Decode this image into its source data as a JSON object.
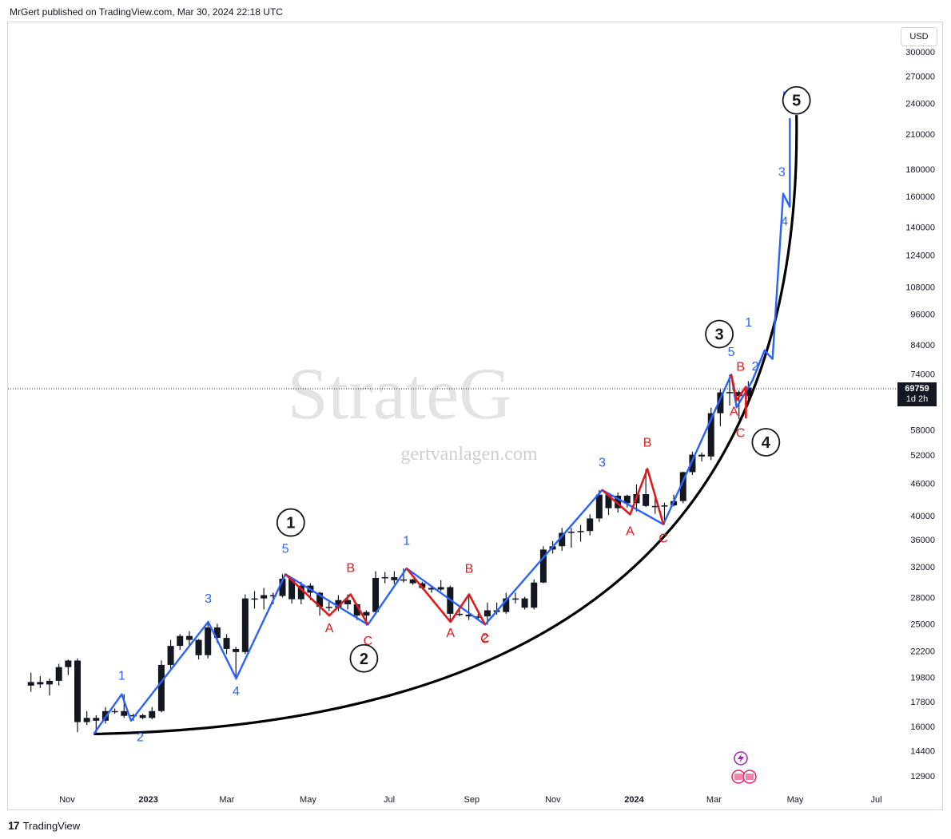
{
  "header": {
    "publisher_line": "MrGert published on TradingView.com, Mar 30, 2024 22:18 UTC"
  },
  "footer": {
    "logo_glyph": "17",
    "brand": "TradingView"
  },
  "watermark": {
    "main": "StrateG",
    "site": "gertvanlagen.com"
  },
  "price_scale": {
    "currency": "USD",
    "last_price": "69759",
    "countdown": "1d 2h",
    "ticks": [
      300000,
      270000,
      240000,
      210000,
      180000,
      160000,
      140000,
      124000,
      108000,
      96000,
      84000,
      74000,
      58000,
      52000,
      46000,
      40000,
      36000,
      32000,
      28000,
      25000,
      22200,
      19800,
      17800,
      16000,
      14400,
      12900
    ]
  },
  "time_axis": {
    "labels": [
      {
        "text": "Nov",
        "date": "2022-11-01",
        "bold": false
      },
      {
        "text": "2023",
        "date": "2023-01-01",
        "bold": true
      },
      {
        "text": "Mar",
        "date": "2023-03-01",
        "bold": false
      },
      {
        "text": "May",
        "date": "2023-05-01",
        "bold": false
      },
      {
        "text": "Jul",
        "date": "2023-07-01",
        "bold": false
      },
      {
        "text": "Sep",
        "date": "2023-09-01",
        "bold": false
      },
      {
        "text": "Nov",
        "date": "2023-11-01",
        "bold": false
      },
      {
        "text": "2024",
        "date": "2024-01-01",
        "bold": true
      },
      {
        "text": "Mar",
        "date": "2024-03-01",
        "bold": false
      },
      {
        "text": "May",
        "date": "2024-05-01",
        "bold": false
      },
      {
        "text": "Jul",
        "date": "2024-07-01",
        "bold": false
      }
    ]
  },
  "colors": {
    "candle": "#131722",
    "impulse": "#2962ff",
    "correction": "#e01919",
    "curve": "#000000",
    "wave_label_blue": "#2962ff",
    "wave_label_red": "#e01919"
  },
  "chart_data": {
    "type": "candlestick",
    "title": "",
    "y_scale": "log",
    "ylim": [
      11800,
      330000
    ],
    "xlim": [
      "2022-10-01",
      "2024-07-31"
    ],
    "candles_weekly": [
      {
        "date": "2022-10-03",
        "o": 19100,
        "h": 20200,
        "l": 18600,
        "c": 19400
      },
      {
        "date": "2022-10-10",
        "o": 19400,
        "h": 19900,
        "l": 18900,
        "c": 19200
      },
      {
        "date": "2022-10-17",
        "o": 19200,
        "h": 19700,
        "l": 18300,
        "c": 19500
      },
      {
        "date": "2022-10-24",
        "o": 19500,
        "h": 21000,
        "l": 19100,
        "c": 20700
      },
      {
        "date": "2022-10-31",
        "o": 20700,
        "h": 21400,
        "l": 20000,
        "c": 21300
      },
      {
        "date": "2022-11-07",
        "o": 21300,
        "h": 21500,
        "l": 15600,
        "c": 16300
      },
      {
        "date": "2022-11-14",
        "o": 16300,
        "h": 17100,
        "l": 16100,
        "c": 16600
      },
      {
        "date": "2022-11-21",
        "o": 16600,
        "h": 16800,
        "l": 15500,
        "c": 16400
      },
      {
        "date": "2022-11-28",
        "o": 16400,
        "h": 17400,
        "l": 16200,
        "c": 17100
      },
      {
        "date": "2022-12-05",
        "o": 17100,
        "h": 17300,
        "l": 16900,
        "c": 17100
      },
      {
        "date": "2022-12-12",
        "o": 17100,
        "h": 18400,
        "l": 16600,
        "c": 16750
      },
      {
        "date": "2022-12-19",
        "o": 16750,
        "h": 16900,
        "l": 16400,
        "c": 16800
      },
      {
        "date": "2022-12-26",
        "o": 16800,
        "h": 16900,
        "l": 16500,
        "c": 16600
      },
      {
        "date": "2023-01-02",
        "o": 16600,
        "h": 17400,
        "l": 16500,
        "c": 17100
      },
      {
        "date": "2023-01-09",
        "o": 17100,
        "h": 21300,
        "l": 17000,
        "c": 20900
      },
      {
        "date": "2023-01-16",
        "o": 20900,
        "h": 23300,
        "l": 20500,
        "c": 22700
      },
      {
        "date": "2023-01-23",
        "o": 22700,
        "h": 23900,
        "l": 22300,
        "c": 23700
      },
      {
        "date": "2023-01-30",
        "o": 23700,
        "h": 24200,
        "l": 22700,
        "c": 23300
      },
      {
        "date": "2023-02-06",
        "o": 23300,
        "h": 23400,
        "l": 21400,
        "c": 21800
      },
      {
        "date": "2023-02-13",
        "o": 21800,
        "h": 25200,
        "l": 21500,
        "c": 24600
      },
      {
        "date": "2023-02-20",
        "o": 24600,
        "h": 25000,
        "l": 23000,
        "c": 23500
      },
      {
        "date": "2023-02-27",
        "o": 23500,
        "h": 23900,
        "l": 21900,
        "c": 22400
      },
      {
        "date": "2023-03-06",
        "o": 22400,
        "h": 22600,
        "l": 19600,
        "c": 22100
      },
      {
        "date": "2023-03-13",
        "o": 22100,
        "h": 28400,
        "l": 21900,
        "c": 27900
      },
      {
        "date": "2023-03-20",
        "o": 27900,
        "h": 28800,
        "l": 26700,
        "c": 27900
      },
      {
        "date": "2023-03-27",
        "o": 27900,
        "h": 29200,
        "l": 26600,
        "c": 28300
      },
      {
        "date": "2023-04-03",
        "o": 28300,
        "h": 28600,
        "l": 27200,
        "c": 28200
      },
      {
        "date": "2023-04-10",
        "o": 28200,
        "h": 31000,
        "l": 28000,
        "c": 30400
      },
      {
        "date": "2023-04-17",
        "o": 30400,
        "h": 30500,
        "l": 27300,
        "c": 27800
      },
      {
        "date": "2023-04-24",
        "o": 27800,
        "h": 30000,
        "l": 27200,
        "c": 29500
      },
      {
        "date": "2023-05-01",
        "o": 29500,
        "h": 29800,
        "l": 27700,
        "c": 28600
      },
      {
        "date": "2023-05-08",
        "o": 28600,
        "h": 28700,
        "l": 25900,
        "c": 26900
      },
      {
        "date": "2023-05-15",
        "o": 26900,
        "h": 27500,
        "l": 26400,
        "c": 26800
      },
      {
        "date": "2023-05-22",
        "o": 26800,
        "h": 28300,
        "l": 26400,
        "c": 27700
      },
      {
        "date": "2023-05-29",
        "o": 27700,
        "h": 28400,
        "l": 26600,
        "c": 27200
      },
      {
        "date": "2023-06-05",
        "o": 27200,
        "h": 27300,
        "l": 25400,
        "c": 25900
      },
      {
        "date": "2023-06-12",
        "o": 25900,
        "h": 26500,
        "l": 24800,
        "c": 26300
      },
      {
        "date": "2023-06-19",
        "o": 26300,
        "h": 31400,
        "l": 26200,
        "c": 30500
      },
      {
        "date": "2023-06-26",
        "o": 30500,
        "h": 31300,
        "l": 29800,
        "c": 30600
      },
      {
        "date": "2023-07-03",
        "o": 30600,
        "h": 31400,
        "l": 29700,
        "c": 30200
      },
      {
        "date": "2023-07-10",
        "o": 30200,
        "h": 31800,
        "l": 29900,
        "c": 30300
      },
      {
        "date": "2023-07-17",
        "o": 30300,
        "h": 30400,
        "l": 29600,
        "c": 29800
      },
      {
        "date": "2023-07-24",
        "o": 29800,
        "h": 30000,
        "l": 29000,
        "c": 29200
      },
      {
        "date": "2023-07-31",
        "o": 29200,
        "h": 29500,
        "l": 28600,
        "c": 29000
      },
      {
        "date": "2023-08-07",
        "o": 29000,
        "h": 30200,
        "l": 28800,
        "c": 29300
      },
      {
        "date": "2023-08-14",
        "o": 29300,
        "h": 29500,
        "l": 25200,
        "c": 26100
      },
      {
        "date": "2023-08-21",
        "o": 26100,
        "h": 26800,
        "l": 25800,
        "c": 26000
      },
      {
        "date": "2023-08-28",
        "o": 26000,
        "h": 28100,
        "l": 25400,
        "c": 25800
      },
      {
        "date": "2023-09-04",
        "o": 25800,
        "h": 26100,
        "l": 25400,
        "c": 25800
      },
      {
        "date": "2023-09-11",
        "o": 25800,
        "h": 27400,
        "l": 24900,
        "c": 26500
      },
      {
        "date": "2023-09-18",
        "o": 26500,
        "h": 27400,
        "l": 26000,
        "c": 26300
      },
      {
        "date": "2023-09-25",
        "o": 26300,
        "h": 28600,
        "l": 26100,
        "c": 27900
      },
      {
        "date": "2023-10-02",
        "o": 27900,
        "h": 28600,
        "l": 27300,
        "c": 27900
      },
      {
        "date": "2023-10-09",
        "o": 27900,
        "h": 28100,
        "l": 26600,
        "c": 26800
      },
      {
        "date": "2023-10-16",
        "o": 26800,
        "h": 30300,
        "l": 26600,
        "c": 29900
      },
      {
        "date": "2023-10-23",
        "o": 29900,
        "h": 35000,
        "l": 29800,
        "c": 34500
      },
      {
        "date": "2023-10-30",
        "o": 34500,
        "h": 35800,
        "l": 33900,
        "c": 35000
      },
      {
        "date": "2023-11-06",
        "o": 35000,
        "h": 37900,
        "l": 34300,
        "c": 37100
      },
      {
        "date": "2023-11-13",
        "o": 37100,
        "h": 37900,
        "l": 34800,
        "c": 37300
      },
      {
        "date": "2023-11-20",
        "o": 37300,
        "h": 38400,
        "l": 35700,
        "c": 37400
      },
      {
        "date": "2023-11-27",
        "o": 37400,
        "h": 40200,
        "l": 36700,
        "c": 39500
      },
      {
        "date": "2023-12-04",
        "o": 39500,
        "h": 44700,
        "l": 38900,
        "c": 43800
      },
      {
        "date": "2023-12-11",
        "o": 43800,
        "h": 44000,
        "l": 40100,
        "c": 41300
      },
      {
        "date": "2023-12-18",
        "o": 41300,
        "h": 44200,
        "l": 40500,
        "c": 43600
      },
      {
        "date": "2023-12-25",
        "o": 43600,
        "h": 43800,
        "l": 41400,
        "c": 42200
      },
      {
        "date": "2024-01-01",
        "o": 42200,
        "h": 45800,
        "l": 40700,
        "c": 43900
      },
      {
        "date": "2024-01-08",
        "o": 43900,
        "h": 48900,
        "l": 41500,
        "c": 41700
      },
      {
        "date": "2024-01-15",
        "o": 41700,
        "h": 43100,
        "l": 40300,
        "c": 41600
      },
      {
        "date": "2024-01-22",
        "o": 41600,
        "h": 42300,
        "l": 38500,
        "c": 41800
      },
      {
        "date": "2024-01-29",
        "o": 41800,
        "h": 43800,
        "l": 41600,
        "c": 42600
      },
      {
        "date": "2024-02-05",
        "o": 42600,
        "h": 48400,
        "l": 42200,
        "c": 48300
      },
      {
        "date": "2024-02-12",
        "o": 48300,
        "h": 52800,
        "l": 47700,
        "c": 52100
      },
      {
        "date": "2024-02-19",
        "o": 52100,
        "h": 52600,
        "l": 50600,
        "c": 51700
      },
      {
        "date": "2024-02-26",
        "o": 51700,
        "h": 63900,
        "l": 50900,
        "c": 62400
      },
      {
        "date": "2024-03-04",
        "o": 62400,
        "h": 69200,
        "l": 59000,
        "c": 68300
      },
      {
        "date": "2024-03-11",
        "o": 68300,
        "h": 73800,
        "l": 64500,
        "c": 68400
      },
      {
        "date": "2024-03-18",
        "o": 68400,
        "h": 68900,
        "l": 60800,
        "c": 67200
      },
      {
        "date": "2024-03-25",
        "o": 67200,
        "h": 71700,
        "l": 66400,
        "c": 69759
      }
    ],
    "overlays": {
      "impulse_path": [
        [
          "2022-11-21",
          15480
        ],
        [
          "2022-12-12",
          18400
        ],
        [
          "2022-12-19",
          16400
        ],
        [
          "2023-02-15",
          25200
        ],
        [
          "2023-03-08",
          19700
        ],
        [
          "2023-04-14",
          31000
        ],
        [
          "2023-06-15",
          24900
        ],
        [
          "2023-07-14",
          31800
        ],
        [
          "2023-09-11",
          24900
        ],
        [
          "2023-12-08",
          44700
        ],
        [
          "2024-01-23",
          38500
        ],
        [
          "2024-03-14",
          73800
        ],
        [
          "2024-03-18",
          64000
        ],
        [
          "2024-03-30",
          72000
        ],
        [
          "2024-04-08",
          82000
        ],
        [
          "2024-04-14",
          79000
        ],
        [
          "2024-04-22",
          162000
        ],
        [
          "2024-04-27",
          153000
        ],
        [
          "2024-04-27",
          225000
        ]
      ],
      "corrections": [
        [
          [
            "2023-04-14",
            31000
          ],
          [
            "2023-05-17",
            25900
          ],
          [
            "2023-06-02",
            28400
          ],
          [
            "2023-06-15",
            24900
          ]
        ],
        [
          [
            "2023-07-14",
            31800
          ],
          [
            "2023-08-16",
            25200
          ],
          [
            "2023-08-30",
            28400
          ],
          [
            "2023-09-11",
            24900
          ]
        ],
        [
          [
            "2023-12-08",
            44700
          ],
          [
            "2023-12-29",
            40200
          ],
          [
            "2024-01-11",
            49000
          ],
          [
            "2024-01-23",
            38500
          ]
        ],
        [
          [
            "2024-03-14",
            73800
          ],
          [
            "2024-03-18",
            66000
          ],
          [
            "2024-03-25",
            70000
          ],
          [
            "2024-03-25",
            61000
          ]
        ]
      ],
      "curve": {
        "start": [
          "2022-11-21",
          15480
        ],
        "end": [
          "2024-05-02",
          228000
        ],
        "label_note": "parabolic support"
      }
    },
    "wave_labels": [
      {
        "t": "1",
        "date": "2022-12-12",
        "p": 19600,
        "color": "blue"
      },
      {
        "t": "2",
        "date": "2022-12-26",
        "p": 15000,
        "color": "blue"
      },
      {
        "t": "3",
        "date": "2023-02-15",
        "p": 27400,
        "color": "blue"
      },
      {
        "t": "4",
        "date": "2023-03-08",
        "p": 18300,
        "color": "blue"
      },
      {
        "t": "5",
        "date": "2023-04-14",
        "p": 34000,
        "color": "blue"
      },
      {
        "t": "A",
        "date": "2023-05-17",
        "p": 24100,
        "color": "red"
      },
      {
        "t": "B",
        "date": "2023-06-02",
        "p": 31300,
        "color": "red"
      },
      {
        "t": "C",
        "date": "2023-06-15",
        "p": 22800,
        "color": "red"
      },
      {
        "t": "1",
        "date": "2023-07-14",
        "p": 35200,
        "color": "blue"
      },
      {
        "t": "A",
        "date": "2023-08-16",
        "p": 23600,
        "color": "red"
      },
      {
        "t": "B",
        "date": "2023-08-30",
        "p": 31200,
        "color": "red"
      },
      {
        "t": "C",
        "date": "2023-09-11",
        "p": 23000,
        "color": "red"
      },
      {
        "t": "2",
        "date": "2023-09-11",
        "p": 23100,
        "color": "red"
      },
      {
        "t": "3",
        "date": "2023-12-08",
        "p": 49500,
        "color": "blue"
      },
      {
        "t": "A",
        "date": "2023-12-29",
        "p": 36700,
        "color": "red"
      },
      {
        "t": "B",
        "date": "2024-01-11",
        "p": 54000,
        "color": "red"
      },
      {
        "t": "C",
        "date": "2024-01-23",
        "p": 35600,
        "color": "red"
      },
      {
        "t": "5",
        "date": "2024-03-14",
        "p": 80000,
        "color": "blue"
      },
      {
        "t": "B",
        "date": "2024-03-21",
        "p": 75000,
        "color": "red"
      },
      {
        "t": "A",
        "date": "2024-03-16",
        "p": 61800,
        "color": "red"
      },
      {
        "t": "C",
        "date": "2024-03-21",
        "p": 56300,
        "color": "red"
      },
      {
        "t": "2",
        "date": "2024-04-01",
        "p": 75100,
        "color": "blue"
      },
      {
        "t": "1",
        "date": "2024-03-27",
        "p": 91000,
        "color": "blue"
      },
      {
        "t": "3",
        "date": "2024-04-21",
        "p": 175000,
        "color": "blue"
      },
      {
        "t": "4",
        "date": "2024-04-23",
        "p": 141000,
        "color": "blue"
      },
      {
        "t": "5",
        "date": "2024-04-24",
        "p": 243000,
        "color": "blue"
      }
    ],
    "circled_labels": [
      {
        "t": "1",
        "date": "2023-04-18",
        "p": 38800
      },
      {
        "t": "2",
        "date": "2023-06-12",
        "p": 21500
      },
      {
        "t": "3",
        "date": "2024-03-05",
        "p": 88000
      },
      {
        "t": "4",
        "date": "2024-04-09",
        "p": 55000
      },
      {
        "t": "5",
        "date": "2024-05-02",
        "p": 243000
      }
    ]
  }
}
